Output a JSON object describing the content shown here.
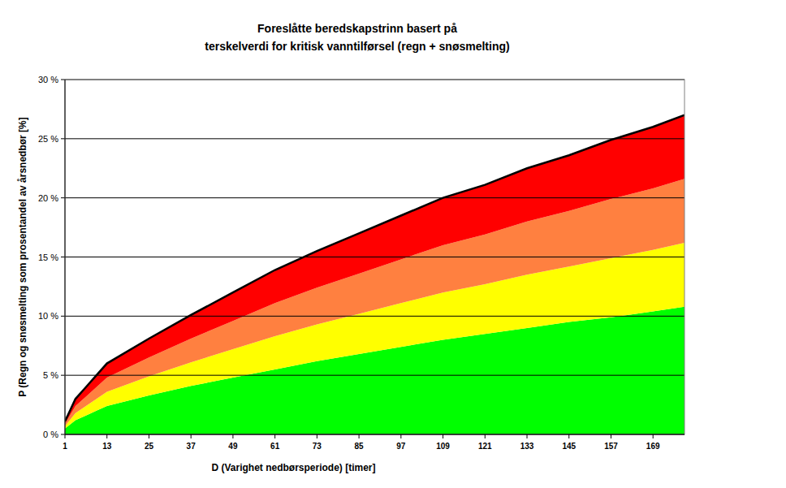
{
  "chart_data": {
    "type": "area",
    "stacked": true,
    "grid": true,
    "title": "Foreslåtte beredskapstrinn basert på",
    "subtitle": "terskelverdi for kritisk vanntilførsel (regn + snøsmelting)",
    "x_label": "D (Varighet nedbørsperiode) [timer]",
    "y_label": "P (Regn og snøsmelting som prosentandel av årsnedbør [%]",
    "x": [
      1,
      4,
      7,
      10,
      13,
      25,
      37,
      49,
      61,
      73,
      85,
      97,
      109,
      121,
      133,
      145,
      157,
      169,
      178
    ],
    "series": [
      {
        "color": "#00ff00",
        "values": [
          0.5,
          1.2,
          1.6,
          2.0,
          2.4,
          3.3,
          4.1,
          4.8,
          5.5,
          6.2,
          6.8,
          7.4,
          8.0,
          8.5,
          9.0,
          9.5,
          9.9,
          10.4,
          10.8
        ]
      },
      {
        "color": "#ffff00",
        "values": [
          0.2,
          0.6,
          0.8,
          1.0,
          1.2,
          1.6,
          2.0,
          2.4,
          2.8,
          3.1,
          3.4,
          3.7,
          4.0,
          4.2,
          4.5,
          4.7,
          5.0,
          5.2,
          5.4
        ]
      },
      {
        "color": "#ff8040",
        "values": [
          0.2,
          0.6,
          0.8,
          1.0,
          1.2,
          1.6,
          2.0,
          2.4,
          2.8,
          3.1,
          3.4,
          3.7,
          4.0,
          4.2,
          4.5,
          4.7,
          5.0,
          5.2,
          5.4
        ]
      },
      {
        "color": "#ff0000",
        "values": [
          0.2,
          0.6,
          0.8,
          1.0,
          1.2,
          1.6,
          2.0,
          2.4,
          2.8,
          3.1,
          3.4,
          3.7,
          4.0,
          4.2,
          4.5,
          4.7,
          5.0,
          5.2,
          5.4
        ]
      }
    ],
    "xlim": [
      1,
      178
    ],
    "xticks": [
      1,
      13,
      25,
      37,
      49,
      61,
      73,
      85,
      97,
      109,
      121,
      133,
      145,
      157,
      169
    ],
    "ylim": [
      0,
      30
    ],
    "yticks": [
      {
        "value": 0,
        "label": "0 %"
      },
      {
        "value": 5,
        "label": "5 %"
      },
      {
        "value": 10,
        "label": "10 %"
      },
      {
        "value": 15,
        "label": "15 %"
      },
      {
        "value": 20,
        "label": "20 %"
      },
      {
        "value": 25,
        "label": "25 %"
      },
      {
        "value": 30,
        "label": "30 %"
      }
    ]
  }
}
